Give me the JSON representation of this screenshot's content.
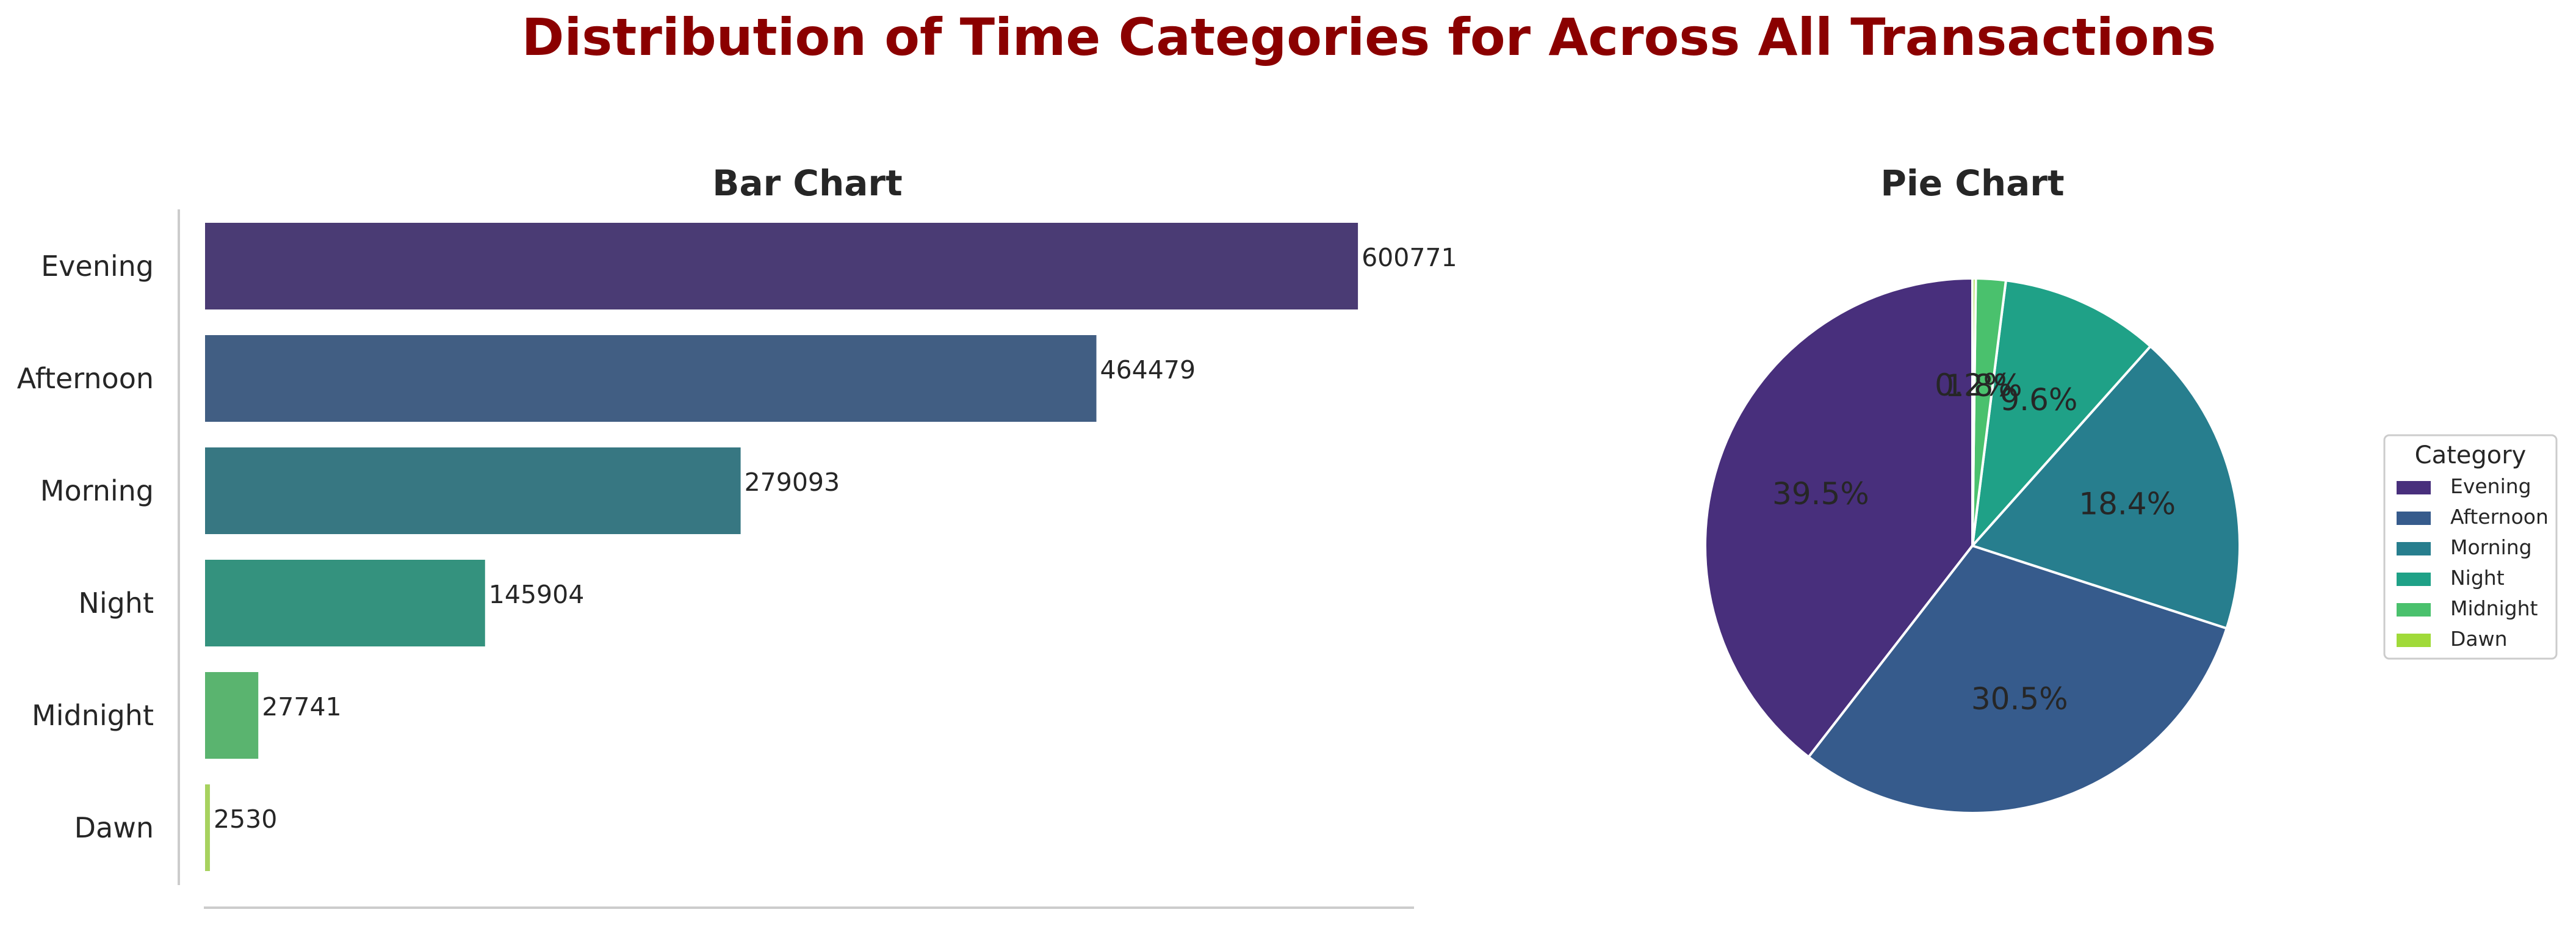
{
  "title": "Distribution of Time Categories for Across All Transactions",
  "colors": {
    "title": "#8b0000",
    "axis": "#cccccc",
    "bar_palette": [
      "#4a3b74",
      "#415e83",
      "#377782",
      "#34927e",
      "#5ab46f",
      "#a7d25f"
    ],
    "pie_palette": [
      "#482f7c",
      "#365b8c",
      "#277e8e",
      "#1fa187",
      "#4ac16d",
      "#a0da39"
    ]
  },
  "chart_data": [
    {
      "type": "bar",
      "orientation": "horizontal",
      "title": "Bar Chart",
      "categories": [
        "Evening",
        "Afternoon",
        "Morning",
        "Night",
        "Midnight",
        "Dawn"
      ],
      "values": [
        600771,
        464479,
        279093,
        145904,
        27741,
        2530
      ],
      "data_labels": [
        "600771",
        "464479",
        "279093",
        "145904",
        "27741",
        "2530"
      ],
      "xlabel": "",
      "ylabel": "",
      "xlim": [
        0,
        630000
      ],
      "grid": false
    },
    {
      "type": "pie",
      "title": "Pie Chart",
      "labels": [
        "Evening",
        "Afternoon",
        "Morning",
        "Night",
        "Midnight",
        "Dawn"
      ],
      "values": [
        39.5,
        30.5,
        18.4,
        9.6,
        1.8,
        0.2
      ],
      "pct_labels": [
        "39.5%",
        "30.5%",
        "18.4%",
        "9.6%",
        "1.8%",
        "0.2%"
      ],
      "legend_title": "Category",
      "legend_position": "right"
    }
  ]
}
